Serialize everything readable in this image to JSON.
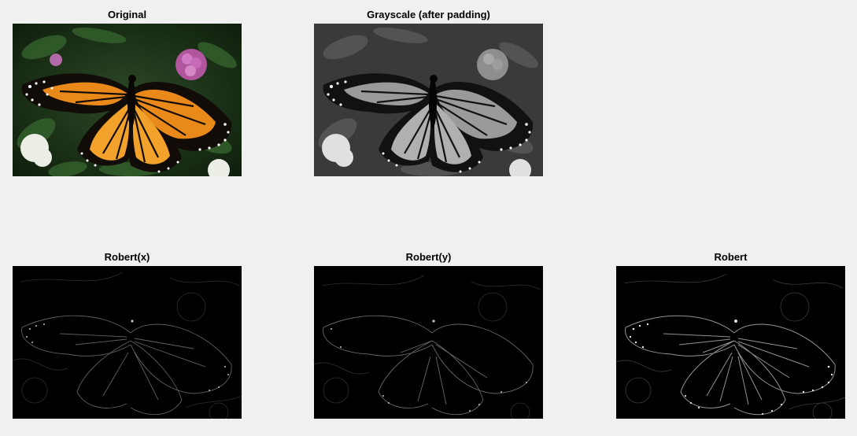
{
  "figure": {
    "background": "#f0f0f0",
    "panels": [
      {
        "id": "original",
        "title": "Original",
        "style": "color"
      },
      {
        "id": "grayscale",
        "title": "Grayscale (after padding)",
        "style": "gray"
      },
      {
        "id": "robert-x",
        "title": "Robert(x)",
        "style": "edge-faint"
      },
      {
        "id": "robert-y",
        "title": "Robert(y)",
        "style": "edge-faint"
      },
      {
        "id": "robert",
        "title": "Robert",
        "style": "edge-bright"
      }
    ]
  },
  "colors": {
    "wing_orange": "#e8891a",
    "wing_black": "#120c08",
    "foliage_dark": "#1f3a1c",
    "foliage_mid": "#2f5a2a",
    "clover_pink": "#c15fb4",
    "white_flower": "#f2f2ee",
    "edge_background": "#000000"
  }
}
